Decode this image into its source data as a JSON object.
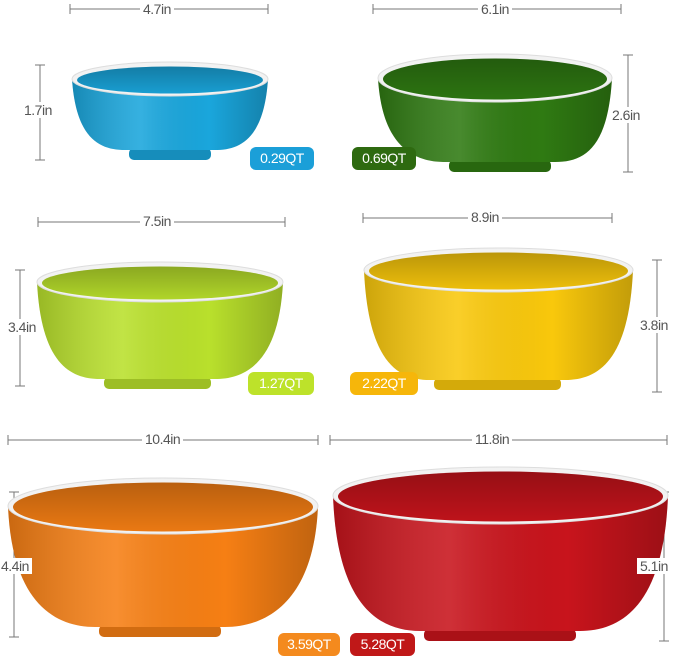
{
  "bowls": [
    {
      "name": "blue",
      "width": "4.7in",
      "height": "1.7in",
      "capacity": "0.29QT",
      "color": "#1aa6dc",
      "badge_color": "#1b9fd8"
    },
    {
      "name": "green",
      "width": "6.1in",
      "height": "2.6in",
      "capacity": "0.69QT",
      "color": "#2f7a12",
      "badge_color": "#2e6a10"
    },
    {
      "name": "lime",
      "width": "7.5in",
      "height": "3.4in",
      "capacity": "1.27QT",
      "color": "#b9e02c",
      "badge_color": "#bde22a"
    },
    {
      "name": "yellow",
      "width": "8.9in",
      "height": "3.8in",
      "capacity": "2.22QT",
      "color": "#f9c80c",
      "badge_color": "#f6b60a"
    },
    {
      "name": "orange",
      "width": "10.4in",
      "height": "4.4in",
      "capacity": "3.59QT",
      "color": "#f67f14",
      "badge_color": "#f48a1e"
    },
    {
      "name": "red",
      "width": "11.8in",
      "height": "5.1in",
      "capacity": "5.28QT",
      "color": "#c8141c",
      "badge_color": "#c01818"
    }
  ]
}
